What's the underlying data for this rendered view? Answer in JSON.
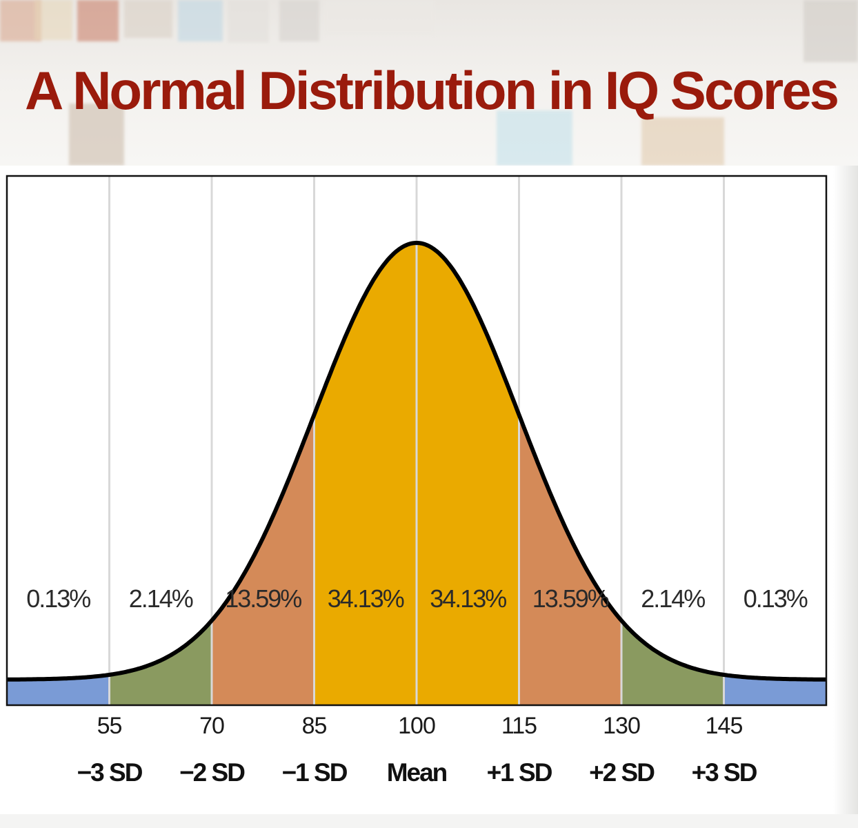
{
  "title": "A Normal Distribution in IQ Scores",
  "colors": {
    "title": "#9a1b0c",
    "band_center": "#eaaa00",
    "band_1sd_2sd": "#d48a58",
    "band_2sd_3sd": "#8a9a60",
    "band_tail": "#7a9bd6",
    "curve": "#000000",
    "divider": "#d8d8d8"
  },
  "chart_data": {
    "type": "area",
    "distribution": "normal",
    "mean": 100,
    "sd": 15,
    "xlim": [
      40,
      160
    ],
    "grid": true,
    "x_ticks": [
      55,
      70,
      85,
      100,
      115,
      130,
      145
    ],
    "tick_labels": [
      "55",
      "70",
      "85",
      "100",
      "115",
      "130",
      "145"
    ],
    "sd_labels": [
      "−3 SD",
      "−2 SD",
      "−1 SD",
      "Mean",
      "+1 SD",
      "+2 SD",
      "+3 SD"
    ],
    "bands": [
      {
        "from": 40,
        "to": 55,
        "percent": 0.13,
        "label": "0.13%"
      },
      {
        "from": 55,
        "to": 70,
        "percent": 2.14,
        "label": "2.14%"
      },
      {
        "from": 70,
        "to": 85,
        "percent": 13.59,
        "label": "13.59%"
      },
      {
        "from": 85,
        "to": 100,
        "percent": 34.13,
        "label": "34.13%"
      },
      {
        "from": 100,
        "to": 115,
        "percent": 34.13,
        "label": "34.13%"
      },
      {
        "from": 115,
        "to": 130,
        "percent": 13.59,
        "label": "13.59%"
      },
      {
        "from": 130,
        "to": 145,
        "percent": 2.14,
        "label": "2.14%"
      },
      {
        "from": 145,
        "to": 160,
        "percent": 0.13,
        "label": "0.13%"
      }
    ]
  }
}
